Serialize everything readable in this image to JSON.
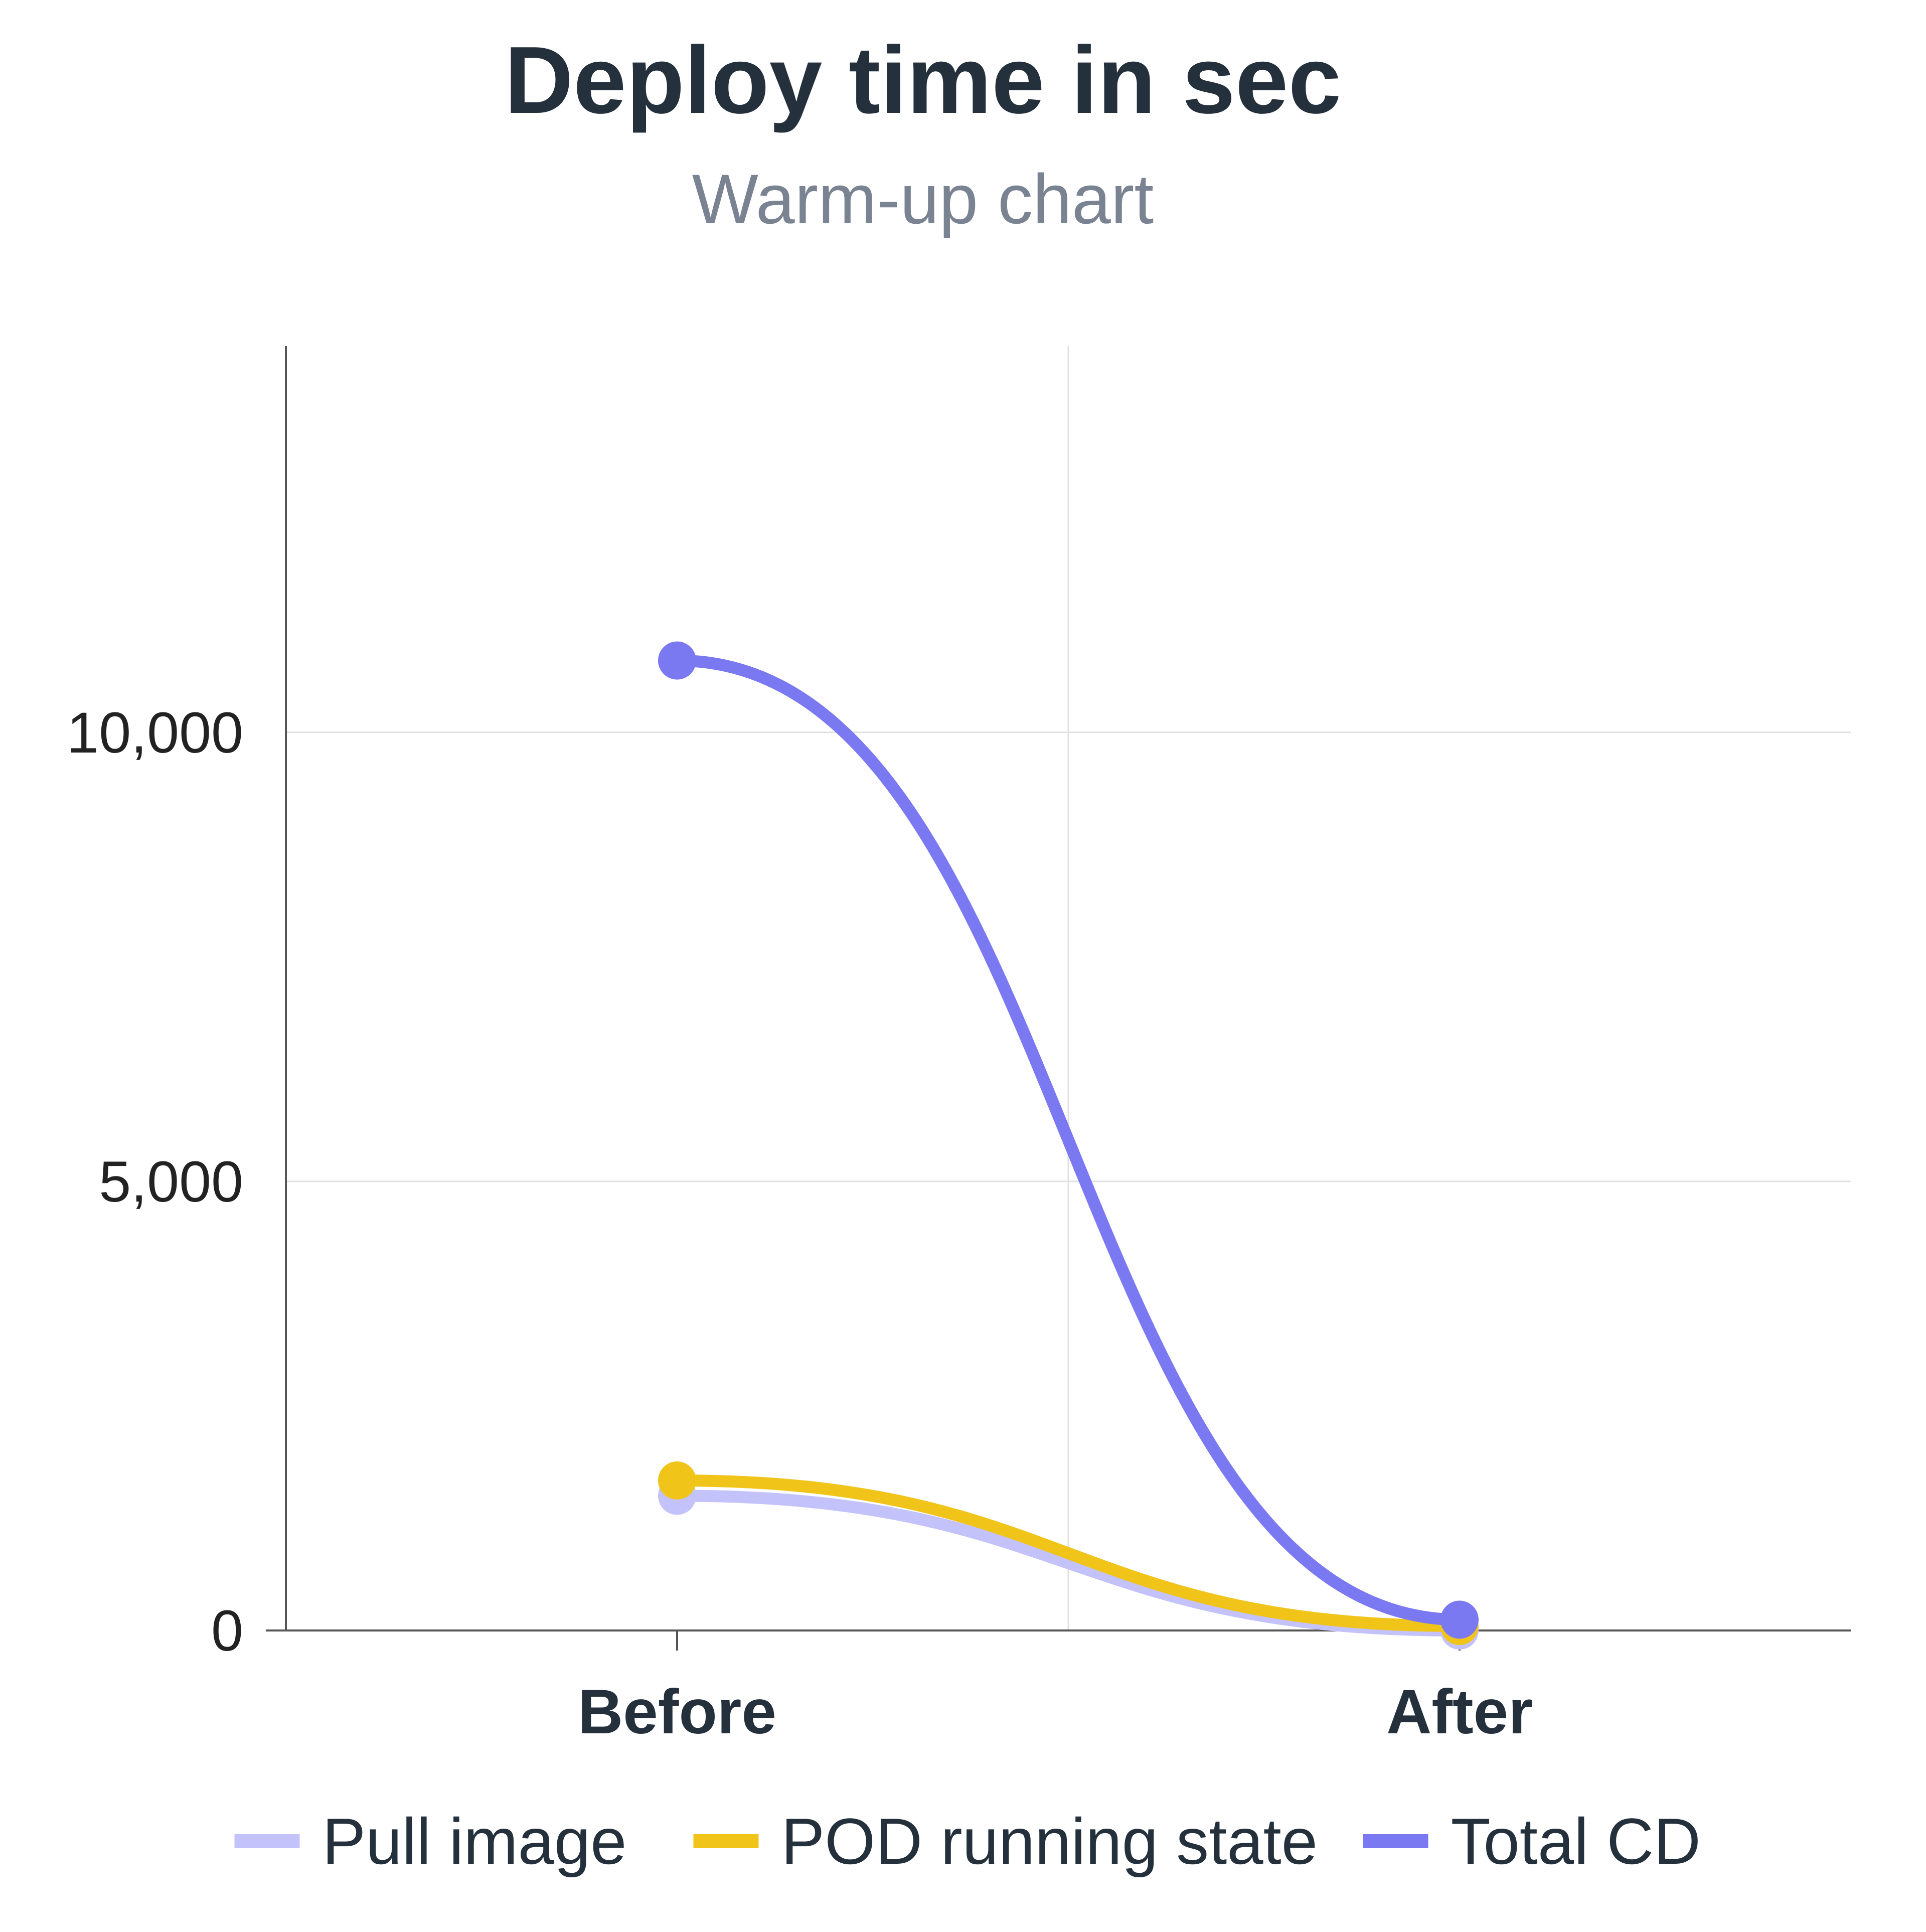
{
  "chart_data": {
    "type": "line",
    "title": "Deploy time in sec",
    "subtitle": "Warm-up chart",
    "xlabel": "",
    "ylabel": "",
    "categories": [
      "Before",
      "After"
    ],
    "ylim": [
      0,
      14300
    ],
    "yticks": [
      {
        "value": 0,
        "label": "0"
      },
      {
        "value": 5000,
        "label": "5,000"
      },
      {
        "value": 10000,
        "label": "10,000"
      }
    ],
    "grid": true,
    "legend_position": "bottom",
    "series": [
      {
        "name": "Pull image",
        "color": "#c4c2fb",
        "values": [
          1500,
          0
        ]
      },
      {
        "name": "POD running state",
        "color": "#f0c419",
        "values": [
          1670,
          50
        ]
      },
      {
        "name": "Total CD",
        "color": "#7b79f2",
        "values": [
          10800,
          120
        ]
      }
    ],
    "colors": {
      "title": "#24303c",
      "subtitle": "#7a8392",
      "tick_label": "#222222",
      "gridline": "#e1e1e1",
      "axis": "#555555"
    }
  }
}
